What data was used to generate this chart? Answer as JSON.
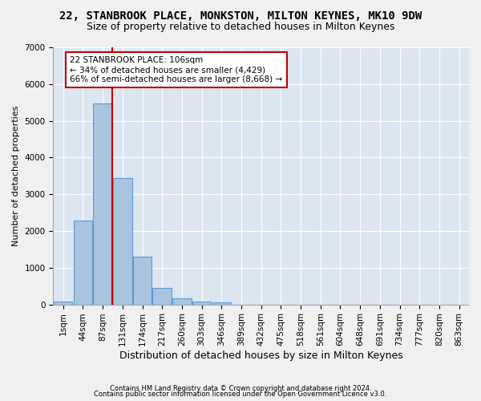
{
  "title1": "22, STANBROOK PLACE, MONKSTON, MILTON KEYNES, MK10 9DW",
  "title2": "Size of property relative to detached houses in Milton Keynes",
  "xlabel": "Distribution of detached houses by size in Milton Keynes",
  "ylabel": "Number of detached properties",
  "footnote1": "Contains HM Land Registry data © Crown copyright and database right 2024.",
  "footnote2": "Contains public sector information licensed under the Open Government Licence v3.0.",
  "bar_values": [
    80,
    2280,
    5480,
    3450,
    1310,
    460,
    155,
    80,
    50,
    0,
    0,
    0,
    0,
    0,
    0,
    0,
    0,
    0,
    0,
    0,
    0
  ],
  "xtick_labels": [
    "1sqm",
    "44sqm",
    "87sqm",
    "131sqm",
    "174sqm",
    "217sqm",
    "260sqm",
    "303sqm",
    "346sqm",
    "389sqm",
    "432sqm",
    "475sqm",
    "518sqm",
    "561sqm",
    "604sqm",
    "648sqm",
    "691sqm",
    "734sqm",
    "777sqm",
    "820sqm",
    "863sqm"
  ],
  "ylim": [
    0,
    7000
  ],
  "yticks": [
    0,
    1000,
    2000,
    3000,
    4000,
    5000,
    6000,
    7000
  ],
  "bar_color": "#aac4e0",
  "bar_edge_color": "#5b9bd5",
  "vline_color": "#c00000",
  "annotation_title": "22 STANBROOK PLACE: 106sqm",
  "annotation_line1": "← 34% of detached houses are smaller (4,429)",
  "annotation_line2": "66% of semi-detached houses are larger (8,668) →",
  "plot_bg_color": "#dce6f1",
  "fig_bg_color": "#f0f0f0",
  "grid_color": "#ffffff",
  "title1_fontsize": 10,
  "title2_fontsize": 9,
  "xlabel_fontsize": 9,
  "ylabel_fontsize": 8,
  "tick_fontsize": 7.5,
  "annot_fontsize": 7.5
}
